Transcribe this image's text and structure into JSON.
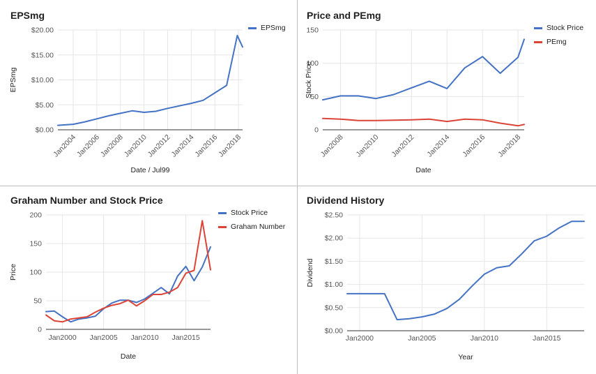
{
  "chart_data": [
    {
      "type": "line",
      "title": "EPSmg",
      "xlabel": "Date / Jul99",
      "ylabel": "EPSmg",
      "x_ticks": [
        "Jan2004",
        "Jan2006",
        "Jan2008",
        "Jan2010",
        "Jan2012",
        "Jan2014",
        "Jan2016",
        "Jan2018"
      ],
      "x_tick_values": [
        2004,
        2006,
        2008,
        2010,
        2012,
        2014,
        2016,
        2018
      ],
      "xlim": [
        2002.7,
        2018.35
      ],
      "y_ticks": [
        "$0.00",
        "$5.00",
        "$10.00",
        "$15.00",
        "$20.00"
      ],
      "y_tick_values": [
        0,
        5,
        10,
        15,
        20
      ],
      "ylim": [
        0,
        20
      ],
      "grid": true,
      "legend": "right",
      "series": [
        {
          "name": "EPSmg",
          "color": "#4472C4",
          "x": [
            2002.7,
            2004,
            2005,
            2006,
            2007,
            2008,
            2009,
            2010,
            2011,
            2012,
            2013,
            2014,
            2015,
            2016,
            2017,
            2017.9,
            2018.35
          ],
          "y": [
            0.9,
            1.1,
            1.6,
            2.2,
            2.8,
            3.3,
            3.8,
            3.5,
            3.7,
            4.3,
            4.8,
            5.3,
            5.9,
            7.4,
            8.9,
            18.9,
            16.6
          ]
        }
      ]
    },
    {
      "type": "line",
      "title": "Price and PEmg",
      "xlabel": "Date",
      "ylabel": "Stock Price",
      "x_ticks": [
        "Jan2008",
        "Jan2010",
        "Jan2012",
        "Jan2014",
        "Jan2016",
        "Jan2018"
      ],
      "x_tick_values": [
        2008,
        2010,
        2012,
        2014,
        2016,
        2018
      ],
      "xlim": [
        2007,
        2018.35
      ],
      "y_ticks": [
        "0",
        "50",
        "100",
        "150"
      ],
      "y_tick_values": [
        0,
        50,
        100,
        150
      ],
      "ylim": [
        0,
        150
      ],
      "grid": true,
      "legend": "right",
      "series": [
        {
          "name": "Stock Price",
          "color": "#4472C4",
          "x": [
            2007,
            2008,
            2009,
            2010,
            2011,
            2012,
            2013,
            2014,
            2015,
            2016,
            2017,
            2018,
            2018.35
          ],
          "y": [
            45,
            51,
            51,
            47,
            53,
            63,
            73,
            62,
            93,
            110,
            85,
            109,
            136
          ]
        },
        {
          "name": "PEmg",
          "color": "#DB4437",
          "x": [
            2007,
            2008,
            2009,
            2010,
            2011,
            2012,
            2013,
            2014,
            2015,
            2016,
            2017,
            2018,
            2018.35
          ],
          "y": [
            17,
            16,
            14,
            14,
            14.5,
            15,
            16,
            12.5,
            16,
            15,
            10,
            6,
            8
          ]
        }
      ]
    },
    {
      "type": "line",
      "title": "Graham Number and Stock Price",
      "xlabel": "Date",
      "ylabel": "Price",
      "x_ticks": [
        "Jan2000",
        "Jan2005",
        "Jan2010",
        "Jan2015"
      ],
      "x_tick_values": [
        2000,
        2005,
        2010,
        2015
      ],
      "xlim": [
        1998,
        2018
      ],
      "y_ticks": [
        "0",
        "50",
        "100",
        "150",
        "200"
      ],
      "y_tick_values": [
        0,
        50,
        100,
        150,
        200
      ],
      "ylim": [
        0,
        200
      ],
      "grid": true,
      "legend": "right",
      "series": [
        {
          "name": "Stock Price",
          "color": "#4472C4",
          "x": [
            1998,
            1999,
            2000,
            2001,
            2002,
            2003,
            2004,
            2005,
            2006,
            2007,
            2008,
            2009,
            2010,
            2011,
            2012,
            2013,
            2014,
            2015,
            2016,
            2017,
            2018
          ],
          "y": [
            31,
            32,
            22,
            13,
            18,
            20,
            23,
            36,
            46,
            51,
            51,
            47,
            53,
            63,
            73,
            62,
            93,
            110,
            85,
            109,
            144
          ]
        },
        {
          "name": "Graham Number",
          "color": "#DB4437",
          "x": [
            1998,
            1999,
            2000,
            2001,
            2002,
            2003,
            2004,
            2005,
            2006,
            2007,
            2008,
            2009,
            2010,
            2011,
            2012,
            2013,
            2014,
            2015,
            2016,
            2017,
            2018
          ],
          "y": [
            25,
            15,
            13,
            18,
            20,
            22,
            30,
            37,
            42,
            45,
            51,
            41,
            50,
            61,
            61,
            65,
            73,
            98,
            103,
            190,
            104
          ]
        }
      ]
    },
    {
      "type": "line",
      "title": "Dividend History",
      "xlabel": "Year",
      "ylabel": "Dividend",
      "x_ticks": [
        "Jan2000",
        "Jan2005",
        "Jan2010",
        "Jan2015"
      ],
      "x_tick_values": [
        2000,
        2005,
        2010,
        2015
      ],
      "xlim": [
        1999,
        2018
      ],
      "y_ticks": [
        "$0.00",
        "$0.50",
        "$1.00",
        "$1.50",
        "$2.00",
        "$2.50"
      ],
      "y_tick_values": [
        0,
        0.5,
        1.0,
        1.5,
        2.0,
        2.5
      ],
      "ylim": [
        0,
        2.5
      ],
      "grid": true,
      "legend": "none",
      "series": [
        {
          "color": "#4472C4",
          "x": [
            1999,
            2000,
            2001,
            2002,
            2003,
            2004,
            2005,
            2006,
            2007,
            2008,
            2009,
            2010,
            2011,
            2012,
            2013,
            2014,
            2015,
            2016,
            2017,
            2018
          ],
          "y": [
            0.8,
            0.8,
            0.8,
            0.8,
            0.24,
            0.26,
            0.3,
            0.36,
            0.48,
            0.68,
            0.96,
            1.22,
            1.36,
            1.4,
            1.66,
            1.94,
            2.04,
            2.22,
            2.36,
            2.36
          ]
        }
      ]
    }
  ]
}
